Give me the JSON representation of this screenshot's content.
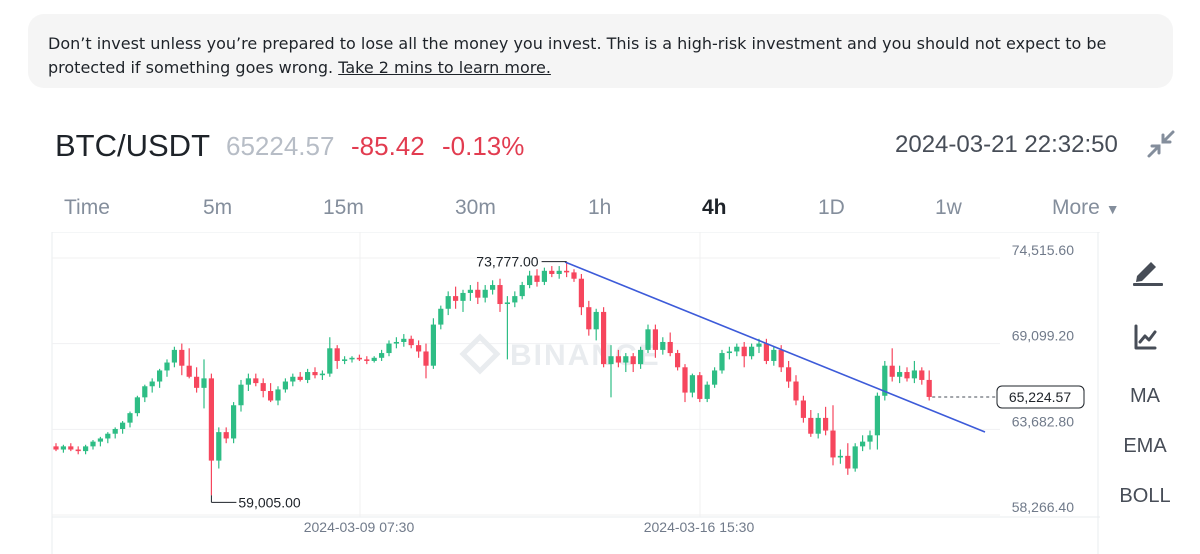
{
  "warning": {
    "text": "Don’t invest unless you’re prepared to lose all the money you invest. This is a high-risk investment and you should not expect to be protected if something goes wrong. ",
    "link": "Take 2 mins to learn more."
  },
  "header": {
    "pair": "BTC/USDT",
    "last_price": "65224.57",
    "change": "-85.42",
    "change_pct": "-0.13%",
    "datetime": "2024-03-21 22:32:50"
  },
  "intervals": {
    "items": [
      "Time",
      "5m",
      "15m",
      "30m",
      "1h",
      "4h",
      "1D",
      "1w",
      "More"
    ],
    "active": "4h"
  },
  "tools": {
    "ma": "MA",
    "ema": "EMA",
    "boll": "BOLL"
  },
  "watermark": "BINANCE",
  "colors": {
    "up": "#2ebd85",
    "down": "#f6465d",
    "trend": "#3d5bd9",
    "price_neg": "#e23c50"
  },
  "chart_data": {
    "type": "candlestick",
    "symbol": "BTC/USDT",
    "interval": "4h",
    "y_ticks": [
      74515.6,
      69099.2,
      63682.8,
      58266.4
    ],
    "y_tick_labels": [
      "74,515.60",
      "69,099.20",
      "63,682.80",
      "58,266.40"
    ],
    "x_tick_labels": [
      "2024-03-09 07:30",
      "2024-03-16 15:30"
    ],
    "current_price_label": "65,224.57",
    "current_price": 65224.57,
    "high_label": "73,777.00",
    "high": 73777.0,
    "low_label": "59,005.00",
    "low": 59005.0,
    "candles": [
      [
        62100,
        62300,
        61800,
        61900
      ],
      [
        61900,
        62200,
        61700,
        62100
      ],
      [
        62100,
        62300,
        61800,
        61900
      ],
      [
        61900,
        62100,
        61600,
        61800
      ],
      [
        61800,
        62200,
        61600,
        62100
      ],
      [
        62100,
        62500,
        61900,
        62400
      ],
      [
        62400,
        62700,
        62100,
        62600
      ],
      [
        62600,
        63000,
        62300,
        62900
      ],
      [
        62900,
        63300,
        62600,
        63200
      ],
      [
        63200,
        63700,
        62900,
        63600
      ],
      [
        63600,
        64300,
        63300,
        64200
      ],
      [
        64200,
        65300,
        64000,
        65200
      ],
      [
        65200,
        66000,
        64900,
        65900
      ],
      [
        65900,
        66400,
        65500,
        66200
      ],
      [
        66200,
        67000,
        65800,
        66900
      ],
      [
        66900,
        67600,
        66500,
        67400
      ],
      [
        67400,
        68400,
        67100,
        68200
      ],
      [
        68200,
        68600,
        66600,
        67200
      ],
      [
        67200,
        68300,
        66400,
        66500
      ],
      [
        66500,
        67100,
        65500,
        65800
      ],
      [
        65800,
        67600,
        64500,
        66400
      ],
      [
        66400,
        66700,
        59005,
        61200
      ],
      [
        61200,
        63300,
        60700,
        63000
      ],
      [
        63000,
        63300,
        62300,
        62600
      ],
      [
        62600,
        64900,
        62300,
        64700
      ],
      [
        64700,
        66300,
        64300,
        66000
      ],
      [
        66000,
        66700,
        65600,
        66400
      ],
      [
        66400,
        66700,
        65900,
        66100
      ],
      [
        66100,
        66400,
        65200,
        65600
      ],
      [
        65600,
        66100,
        64900,
        65000
      ],
      [
        65000,
        65900,
        64700,
        65700
      ],
      [
        65700,
        66400,
        65500,
        66200
      ],
      [
        66200,
        66700,
        65900,
        66500
      ],
      [
        66500,
        66800,
        66200,
        66300
      ],
      [
        66300,
        67000,
        66100,
        66800
      ],
      [
        66800,
        67100,
        66400,
        66600
      ],
      [
        66600,
        66900,
        66300,
        66700
      ],
      [
        66700,
        69000,
        66500,
        68300
      ],
      [
        68300,
        68500,
        67000,
        67500
      ],
      [
        67500,
        67800,
        67300,
        67600
      ],
      [
        67600,
        67800,
        67400,
        67700
      ],
      [
        67700,
        67900,
        67500,
        67600
      ],
      [
        67600,
        67800,
        67300,
        67500
      ],
      [
        67500,
        67800,
        67400,
        67700
      ],
      [
        67700,
        68200,
        67500,
        68000
      ],
      [
        68000,
        68800,
        67800,
        68600
      ],
      [
        68600,
        69000,
        68300,
        68700
      ],
      [
        68700,
        69200,
        68400,
        68900
      ],
      [
        68900,
        69100,
        68300,
        68500
      ],
      [
        68500,
        68800,
        67700,
        68100
      ],
      [
        68100,
        68600,
        66400,
        67200
      ],
      [
        67200,
        70200,
        67000,
        69800
      ],
      [
        69800,
        71000,
        69500,
        70800
      ],
      [
        70800,
        71900,
        70400,
        71600
      ],
      [
        71600,
        72200,
        70800,
        71300
      ],
      [
        71300,
        72000,
        70600,
        71800
      ],
      [
        71800,
        72300,
        71300,
        72000
      ],
      [
        72000,
        72500,
        71100,
        71500
      ],
      [
        71500,
        72300,
        71200,
        72000
      ],
      [
        72000,
        72600,
        71700,
        72300
      ],
      [
        72300,
        72700,
        70600,
        71100
      ],
      [
        71100,
        71600,
        67600,
        71200
      ],
      [
        71200,
        71900,
        70900,
        71600
      ],
      [
        71600,
        72500,
        71400,
        72300
      ],
      [
        72300,
        73200,
        72100,
        72900
      ],
      [
        72900,
        73300,
        72200,
        72500
      ],
      [
        72500,
        73400,
        72300,
        73200
      ],
      [
        73200,
        73500,
        72800,
        73000
      ],
      [
        73000,
        73500,
        72700,
        73200
      ],
      [
        73200,
        73777,
        72800,
        73100
      ],
      [
        73100,
        73300,
        72500,
        72700
      ],
      [
        72700,
        73000,
        70400,
        70900
      ],
      [
        70900,
        71300,
        69100,
        69500
      ],
      [
        69500,
        70800,
        68800,
        70600
      ],
      [
        70600,
        70900,
        67100,
        67300
      ],
      [
        67300,
        68500,
        65200,
        67800
      ],
      [
        67800,
        68200,
        67100,
        67400
      ],
      [
        67400,
        68000,
        66800,
        67800
      ],
      [
        67800,
        68000,
        66800,
        67300
      ],
      [
        67300,
        68400,
        67000,
        68200
      ],
      [
        68200,
        69800,
        68000,
        69500
      ],
      [
        69500,
        69800,
        67700,
        68200
      ],
      [
        68200,
        69000,
        67900,
        68700
      ],
      [
        68700,
        69300,
        67800,
        68000
      ],
      [
        68000,
        68200,
        66900,
        67100
      ],
      [
        67100,
        67300,
        64900,
        65500
      ],
      [
        65500,
        66700,
        65200,
        66600
      ],
      [
        66600,
        66800,
        64900,
        65100
      ],
      [
        65100,
        66200,
        64900,
        66000
      ],
      [
        66000,
        67100,
        65800,
        66900
      ],
      [
        66900,
        68200,
        66700,
        68000
      ],
      [
        68000,
        68400,
        67600,
        68100
      ],
      [
        68100,
        68600,
        67800,
        68400
      ],
      [
        68400,
        68700,
        67100,
        67800
      ],
      [
        67800,
        68600,
        67600,
        68400
      ],
      [
        68400,
        68900,
        68000,
        68600
      ],
      [
        68600,
        68900,
        67300,
        67500
      ],
      [
        67500,
        68400,
        67200,
        68200
      ],
      [
        68200,
        68500,
        66800,
        67100
      ],
      [
        67100,
        67500,
        65800,
        66200
      ],
      [
        66200,
        66600,
        64700,
        65000
      ],
      [
        65000,
        65300,
        63600,
        63900
      ],
      [
        63900,
        64400,
        62700,
        62900
      ],
      [
        62900,
        64200,
        62600,
        63900
      ],
      [
        63900,
        64600,
        62800,
        63100
      ],
      [
        63100,
        64700,
        60900,
        61400
      ],
      [
        61400,
        61900,
        61000,
        61500
      ],
      [
        61500,
        62300,
        60300,
        60700
      ],
      [
        60700,
        62300,
        60500,
        62100
      ],
      [
        62100,
        62800,
        61800,
        62400
      ],
      [
        62400,
        63100,
        61900,
        62800
      ],
      [
        62800,
        65500,
        61900,
        65300
      ],
      [
        65300,
        67500,
        65000,
        67200
      ],
      [
        67200,
        68300,
        66200,
        66500
      ],
      [
        66500,
        67200,
        66100,
        66800
      ],
      [
        66800,
        67100,
        66200,
        66400
      ],
      [
        66400,
        67500,
        66100,
        66900
      ],
      [
        66900,
        67100,
        66000,
        66300
      ],
      [
        66300,
        66900,
        65000,
        65224.57
      ]
    ],
    "annotations": [
      "73,777.00",
      "59,005.00",
      "65,224.57"
    ]
  }
}
